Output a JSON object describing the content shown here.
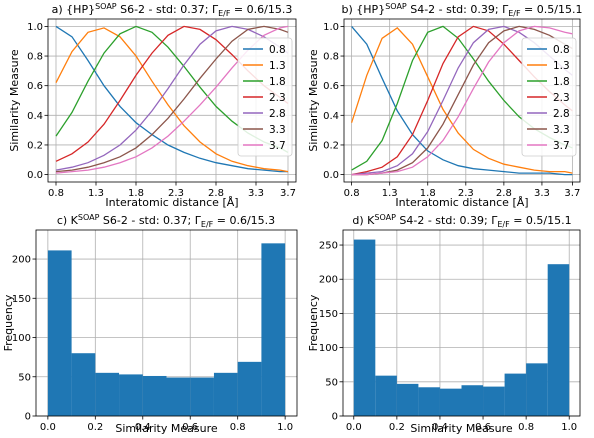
{
  "chart_data": [
    {
      "type": "line",
      "title": {
        "prefix": "a) {HP}",
        "sup": "SOAP",
        "mid": " S6-2 - std: 0.37; Γ",
        "sub": "E/F",
        "suffix": " = 0.6/15.3"
      },
      "xlabel": "Interatomic distance [Å]",
      "ylabel": "Similarity Measure",
      "xlim": [
        0.7,
        3.8
      ],
      "ylim": [
        -0.05,
        1.05
      ],
      "xticks": [
        "0.8",
        "1.3",
        "1.8",
        "2.3",
        "2.8",
        "3.3",
        "3.7"
      ],
      "yticks": [
        "0.0",
        "0.2",
        "0.4",
        "0.6",
        "0.8",
        "1.0"
      ],
      "grid": true,
      "legend": "center-right",
      "x": [
        0.8,
        1.0,
        1.2,
        1.4,
        1.6,
        1.8,
        2.0,
        2.2,
        2.4,
        2.6,
        2.8,
        3.0,
        3.2,
        3.4,
        3.6,
        3.7
      ],
      "series": [
        {
          "name": "0.8",
          "color": "#1f77b4",
          "values": [
            1.0,
            0.93,
            0.77,
            0.6,
            0.46,
            0.35,
            0.27,
            0.2,
            0.15,
            0.11,
            0.08,
            0.06,
            0.04,
            0.03,
            0.02,
            0.02
          ]
        },
        {
          "name": "1.3",
          "color": "#ff7f0e",
          "values": [
            0.62,
            0.83,
            0.96,
            0.99,
            0.93,
            0.8,
            0.63,
            0.47,
            0.33,
            0.22,
            0.14,
            0.09,
            0.06,
            0.04,
            0.03,
            0.02
          ]
        },
        {
          "name": "1.8",
          "color": "#2ca02c",
          "values": [
            0.26,
            0.42,
            0.63,
            0.82,
            0.95,
            1.0,
            0.96,
            0.86,
            0.73,
            0.59,
            0.46,
            0.36,
            0.28,
            0.22,
            0.18,
            0.15
          ]
        },
        {
          "name": "2.3",
          "color": "#d62728",
          "values": [
            0.09,
            0.14,
            0.22,
            0.34,
            0.5,
            0.67,
            0.82,
            0.94,
            1.0,
            0.98,
            0.91,
            0.81,
            0.7,
            0.6,
            0.52,
            0.48
          ]
        },
        {
          "name": "2.8",
          "color": "#9467bd",
          "values": [
            0.03,
            0.05,
            0.08,
            0.13,
            0.2,
            0.3,
            0.43,
            0.58,
            0.74,
            0.88,
            0.97,
            1.0,
            0.98,
            0.93,
            0.86,
            0.82
          ]
        },
        {
          "name": "3.3",
          "color": "#8c564b",
          "values": [
            0.02,
            0.03,
            0.05,
            0.08,
            0.12,
            0.18,
            0.27,
            0.38,
            0.51,
            0.65,
            0.78,
            0.9,
            0.98,
            1.0,
            0.98,
            0.96
          ]
        },
        {
          "name": "3.7",
          "color": "#e377c2",
          "values": [
            0.01,
            0.02,
            0.03,
            0.05,
            0.08,
            0.12,
            0.18,
            0.26,
            0.36,
            0.47,
            0.59,
            0.72,
            0.84,
            0.94,
            0.99,
            1.0
          ]
        }
      ]
    },
    {
      "type": "line",
      "title": {
        "prefix": "b) {HP}",
        "sup": "SOAP",
        "mid": " S4-2 - std: 0.39; Γ",
        "sub": "E/F",
        "suffix": " = 0.5/15.1"
      },
      "xlabel": "Interatomic distance [Å]",
      "ylabel": "Similarity Measure",
      "xlim": [
        0.7,
        3.8
      ],
      "ylim": [
        -0.05,
        1.05
      ],
      "xticks": [
        "0.8",
        "1.3",
        "1.8",
        "2.3",
        "2.8",
        "3.3",
        "3.7"
      ],
      "yticks": [
        "0.0",
        "0.2",
        "0.4",
        "0.6",
        "0.8",
        "1.0"
      ],
      "grid": true,
      "legend": "center-right",
      "x": [
        0.8,
        1.0,
        1.2,
        1.4,
        1.6,
        1.8,
        2.0,
        2.2,
        2.4,
        2.6,
        2.8,
        3.0,
        3.2,
        3.4,
        3.6,
        3.7
      ],
      "series": [
        {
          "name": "0.8",
          "color": "#1f77b4",
          "values": [
            1.0,
            0.88,
            0.65,
            0.43,
            0.27,
            0.16,
            0.1,
            0.06,
            0.04,
            0.03,
            0.02,
            0.01,
            0.01,
            0.01,
            0.0,
            0.0
          ]
        },
        {
          "name": "1.3",
          "color": "#ff7f0e",
          "values": [
            0.35,
            0.67,
            0.92,
            0.99,
            0.88,
            0.66,
            0.44,
            0.28,
            0.17,
            0.11,
            0.07,
            0.05,
            0.03,
            0.02,
            0.02,
            0.01
          ]
        },
        {
          "name": "1.8",
          "color": "#2ca02c",
          "values": [
            0.03,
            0.09,
            0.23,
            0.48,
            0.77,
            0.96,
            1.0,
            0.92,
            0.78,
            0.63,
            0.5,
            0.39,
            0.31,
            0.25,
            0.2,
            0.18
          ]
        },
        {
          "name": "2.3",
          "color": "#d62728",
          "values": [
            0.0,
            0.02,
            0.05,
            0.12,
            0.27,
            0.5,
            0.75,
            0.93,
            1.0,
            0.97,
            0.88,
            0.77,
            0.66,
            0.56,
            0.47,
            0.43
          ]
        },
        {
          "name": "2.8",
          "color": "#9467bd",
          "values": [
            0.0,
            0.01,
            0.02,
            0.06,
            0.14,
            0.29,
            0.5,
            0.72,
            0.89,
            0.98,
            1.0,
            0.96,
            0.89,
            0.8,
            0.71,
            0.67
          ]
        },
        {
          "name": "3.3",
          "color": "#8c564b",
          "values": [
            0.0,
            0.0,
            0.01,
            0.03,
            0.08,
            0.18,
            0.34,
            0.54,
            0.74,
            0.89,
            0.97,
            1.0,
            0.98,
            0.94,
            0.88,
            0.85
          ]
        },
        {
          "name": "3.7",
          "color": "#e377c2",
          "values": [
            0.0,
            0.0,
            0.01,
            0.02,
            0.05,
            0.12,
            0.23,
            0.39,
            0.58,
            0.76,
            0.89,
            0.97,
            1.0,
            0.99,
            0.96,
            0.95
          ]
        }
      ]
    },
    {
      "type": "bar",
      "title": {
        "prefix": "c) K",
        "sup": "SOAP",
        "mid": " S6-2 - std: 0.37; Γ",
        "sub": "E/F",
        "suffix": " = 0.6/15.3"
      },
      "xlabel": "Similarity Measure",
      "ylabel": "Frequency",
      "xlim": [
        -0.05,
        1.05
      ],
      "ylim": [
        0,
        237
      ],
      "xticks": [
        "0.0",
        "0.2",
        "0.4",
        "0.6",
        "0.8",
        "1.0"
      ],
      "yticks": [
        "0",
        "50",
        "100",
        "150",
        "200"
      ],
      "grid": true,
      "color": "#1f77b4",
      "bin_edges": [
        0.0,
        0.1,
        0.2,
        0.3,
        0.4,
        0.5,
        0.6,
        0.7,
        0.8,
        0.9,
        1.0
      ],
      "values": [
        211,
        80,
        55,
        53,
        51,
        49,
        49,
        55,
        69,
        220
      ]
    },
    {
      "type": "bar",
      "title": {
        "prefix": "d) K",
        "sup": "SOAP",
        "mid": " S4-2 - std: 0.39; Γ",
        "sub": "E/F",
        "suffix": " = 0.5/15.1"
      },
      "xlabel": "Similarity Measure",
      "ylabel": "Frequency",
      "xlim": [
        -0.05,
        1.05
      ],
      "ylim": [
        0,
        272
      ],
      "xticks": [
        "0.0",
        "0.2",
        "0.4",
        "0.6",
        "0.8",
        "1.0"
      ],
      "yticks": [
        "0",
        "50",
        "100",
        "150",
        "200",
        "250"
      ],
      "grid": true,
      "color": "#1f77b4",
      "bin_edges": [
        0.0,
        0.1,
        0.2,
        0.3,
        0.4,
        0.5,
        0.6,
        0.7,
        0.8,
        0.9,
        1.0
      ],
      "values": [
        258,
        59,
        47,
        42,
        40,
        45,
        43,
        62,
        77,
        222
      ]
    }
  ]
}
